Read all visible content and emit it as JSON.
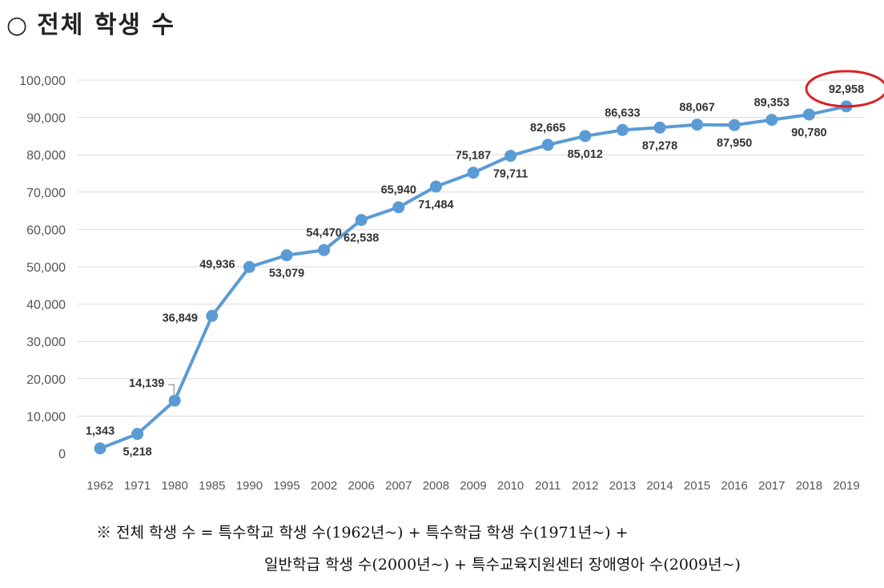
{
  "page": {
    "title_bullet": "○",
    "title": "전체 학생 수",
    "note_line1": "※ 전체 학생 수 = 특수학교 학생 수(1962년~) + 특수학급 학생 수(1971년~) +",
    "note_line2": "일반학급 학생 수(2000년~) + 특수교육지원센터 장애영아 수(2009년~)"
  },
  "chart_data": {
    "type": "line",
    "title": "",
    "xlabel": "",
    "ylabel": "",
    "ylim": [
      0,
      100000
    ],
    "yticks": [
      0,
      10000,
      20000,
      30000,
      40000,
      50000,
      60000,
      70000,
      80000,
      90000,
      100000
    ],
    "ytick_labels": [
      "0",
      "10,000",
      "20,000",
      "30,000",
      "40,000",
      "50,000",
      "60,000",
      "70,000",
      "80,000",
      "90,000",
      "100,000"
    ],
    "grid": true,
    "categories": [
      "1962",
      "1971",
      "1980",
      "1985",
      "1990",
      "1995",
      "2002",
      "2006",
      "2007",
      "2008",
      "2009",
      "2010",
      "2011",
      "2012",
      "2013",
      "2014",
      "2015",
      "2016",
      "2017",
      "2018",
      "2019"
    ],
    "values": [
      1343,
      5218,
      14139,
      36849,
      49936,
      53079,
      54470,
      62538,
      65940,
      71484,
      75187,
      79711,
      82665,
      85012,
      86633,
      87278,
      88067,
      87950,
      89353,
      90780,
      92958
    ],
    "value_labels": [
      "1,343",
      "5,218",
      "14,139",
      "36,849",
      "49,936",
      "53,079",
      "54,470",
      "62,538",
      "65,940",
      "71,484",
      "75,187",
      "79,711",
      "82,665",
      "85,012",
      "86,633",
      "87,278",
      "88,067",
      "87,950",
      "89,353",
      "90,780",
      "92,958"
    ],
    "line_color": "#5b9bd5",
    "highlight_color": "#d9232a",
    "highlight_index": 20
  }
}
